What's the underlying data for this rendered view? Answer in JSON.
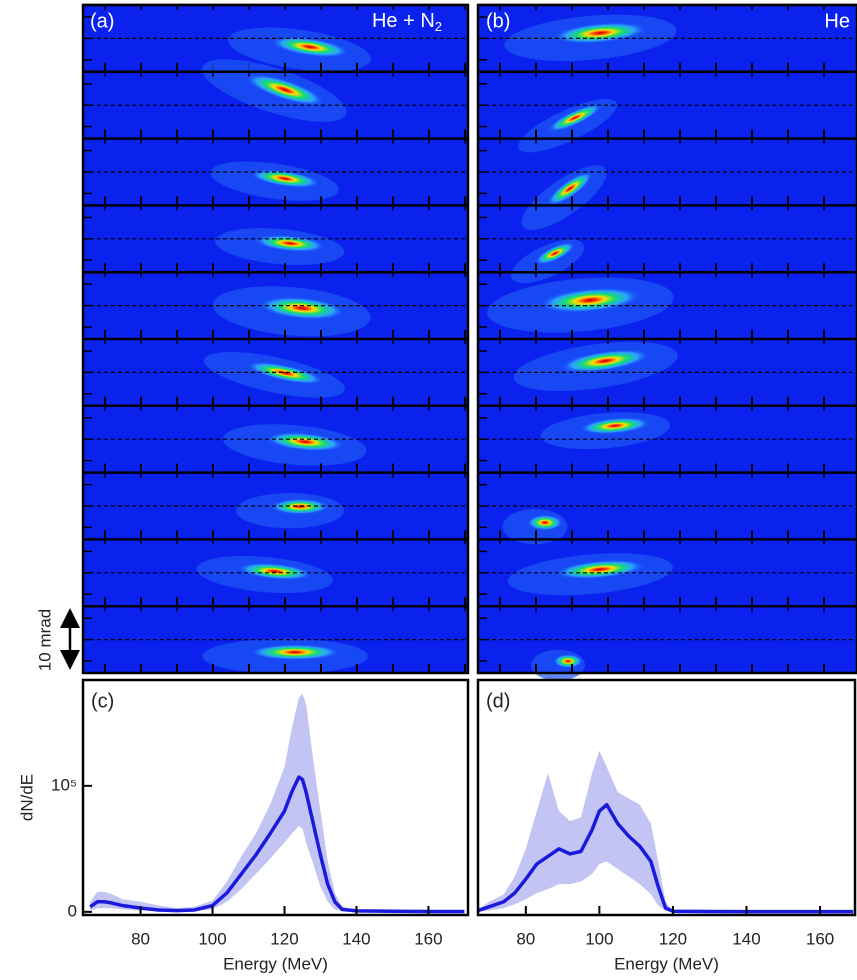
{
  "image_panels": [
    {
      "label": "(a)",
      "gas": "He + N",
      "gas_sub": "2"
    },
    {
      "label": "(b)",
      "gas": "He"
    }
  ],
  "scale_annotation": "10 mrad",
  "chart_data": [
    {
      "type": "line",
      "panel_label": "(c)",
      "xlabel": "Energy (MeV)",
      "ylabel": "dN/dE",
      "color": "#1a1adc",
      "band_color": "#c4c4f4",
      "x": [
        66,
        68,
        70,
        72,
        75,
        80,
        85,
        90,
        95,
        100,
        104,
        108,
        112,
        116,
        120,
        122,
        124,
        125,
        126,
        128,
        130,
        132,
        134,
        136,
        140,
        150,
        160,
        170
      ],
      "values": [
        4000,
        8000,
        8000,
        7000,
        5000,
        3000,
        1500,
        1000,
        1500,
        5000,
        15000,
        30000,
        45000,
        62000,
        80000,
        95000,
        107000,
        105000,
        95000,
        70000,
        45000,
        22000,
        8000,
        2000,
        800,
        500,
        300,
        300
      ],
      "band_low": [
        1000,
        3000,
        3000,
        3000,
        2000,
        1000,
        500,
        300,
        500,
        2000,
        8000,
        18000,
        30000,
        42000,
        55000,
        62000,
        68000,
        66000,
        55000,
        38000,
        20000,
        8000,
        2000,
        500,
        200,
        100,
        100,
        100
      ],
      "band_high": [
        8000,
        16000,
        16000,
        14000,
        10000,
        8000,
        5000,
        3000,
        4000,
        9000,
        24000,
        44000,
        62000,
        85000,
        115000,
        145000,
        170000,
        173000,
        165000,
        120000,
        80000,
        40000,
        15000,
        4000,
        1500,
        900,
        600,
        500
      ],
      "xlim": [
        64,
        171
      ],
      "xticks": [
        80,
        100,
        120,
        140,
        160
      ],
      "ylim": [
        -2500,
        184000
      ],
      "yticks": [
        0,
        {
          "value": 100000,
          "label": "10⁵"
        }
      ]
    },
    {
      "type": "line",
      "panel_label": "(d)",
      "xlabel": "Energy (MeV)",
      "color": "#1a1adc",
      "band_color": "#c4c4f4",
      "x": [
        67,
        70,
        74,
        77,
        80,
        83,
        86,
        89,
        92,
        95,
        98,
        100,
        102,
        105,
        108,
        111,
        114,
        116,
        118,
        120,
        130,
        140,
        150,
        160,
        169
      ],
      "values": [
        1000,
        4000,
        8000,
        15000,
        26000,
        38000,
        44000,
        50000,
        46000,
        48000,
        65000,
        80000,
        85000,
        70000,
        60000,
        52000,
        40000,
        20000,
        3000,
        500,
        300,
        200,
        200,
        200,
        200
      ],
      "band_low": [
        300,
        1000,
        3000,
        6000,
        10000,
        15000,
        18000,
        22000,
        22000,
        24000,
        30000,
        38000,
        40000,
        34000,
        28000,
        22000,
        14000,
        5000,
        800,
        200,
        100,
        100,
        100,
        100,
        100
      ],
      "band_high": [
        2000,
        8000,
        14000,
        28000,
        50000,
        80000,
        110000,
        80000,
        72000,
        75000,
        110000,
        128000,
        115000,
        95000,
        90000,
        85000,
        70000,
        40000,
        8000,
        1000,
        600,
        400,
        400,
        400,
        400
      ],
      "xlim": [
        67,
        169.5
      ],
      "xticks": [
        80,
        100,
        120,
        140,
        160
      ],
      "ylim": [
        -2500,
        184000
      ]
    }
  ]
}
